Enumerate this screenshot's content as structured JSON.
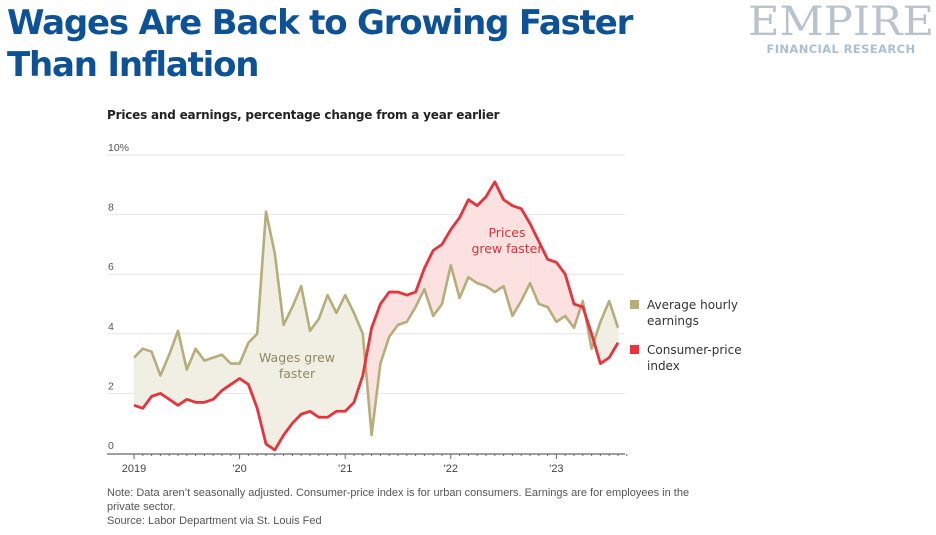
{
  "header": {
    "title_line1": "Wages Are Back to Growing Faster",
    "title_line2": "Than Inflation",
    "logo_main": "EMPIRE",
    "logo_sub": "FINANCIAL RESEARCH"
  },
  "colors": {
    "title": "#0d5197",
    "wages": "#b5ad7a",
    "cpi": "#e8323c",
    "wages_fill": "#f1efe3",
    "cpi_fill": "#fbe1df",
    "grid": "#e6e6e6",
    "axis": "#666666"
  },
  "chart_data": {
    "type": "line",
    "title": "Prices and earnings, percentage change from a year earlier",
    "xlabel": "",
    "ylabel": "",
    "ylim": [
      0,
      10
    ],
    "yticks": [
      0,
      2,
      4,
      6,
      8,
      10
    ],
    "ytick_labels": [
      "0",
      "2",
      "4",
      "6",
      "8",
      "10%"
    ],
    "xtick_labels": [
      "2019",
      "'20",
      "'21",
      "'22",
      "'23"
    ],
    "x_start": "2019-01",
    "x_end": "2023-08",
    "frequency": "monthly",
    "grid": true,
    "legend_position": "right",
    "series": [
      {
        "name": "Average hourly earnings",
        "color": "#b5ad7a",
        "values": [
          3.2,
          3.5,
          3.4,
          2.6,
          3.3,
          4.1,
          2.8,
          3.5,
          3.1,
          3.2,
          3.3,
          3.0,
          3.0,
          3.7,
          4.0,
          8.1,
          6.7,
          4.3,
          4.9,
          5.6,
          4.1,
          4.5,
          5.3,
          4.7,
          5.3,
          4.7,
          4.0,
          0.6,
          3.0,
          3.9,
          4.3,
          4.4,
          4.9,
          5.5,
          4.6,
          5.0,
          6.3,
          5.2,
          5.9,
          5.7,
          5.6,
          5.4,
          5.6,
          4.6,
          5.1,
          5.7,
          5.0,
          4.9,
          4.4,
          4.6,
          4.2,
          5.1,
          3.5,
          4.4,
          5.1,
          4.2
        ]
      },
      {
        "name": "Consumer-price index",
        "color": "#e8323c",
        "values": [
          1.6,
          1.5,
          1.9,
          2.0,
          1.8,
          1.6,
          1.8,
          1.7,
          1.7,
          1.8,
          2.1,
          2.3,
          2.5,
          2.3,
          1.5,
          0.3,
          0.1,
          0.6,
          1.0,
          1.3,
          1.4,
          1.2,
          1.2,
          1.4,
          1.4,
          1.7,
          2.6,
          4.2,
          5.0,
          5.4,
          5.4,
          5.3,
          5.4,
          6.2,
          6.8,
          7.0,
          7.5,
          7.9,
          8.5,
          8.3,
          8.6,
          9.1,
          8.5,
          8.3,
          8.2,
          7.7,
          7.1,
          6.5,
          6.4,
          6.0,
          5.0,
          4.9,
          4.0,
          3.0,
          3.2,
          3.7
        ]
      }
    ],
    "legend": [
      {
        "line1": "Average hourly",
        "line2": "earnings"
      },
      {
        "line1": "Consumer-price",
        "line2": "index"
      }
    ],
    "annotations": [
      {
        "line1": "Wages grew",
        "line2": "faster",
        "series_color": "wages"
      },
      {
        "line1": "Prices",
        "line2": "grew faster",
        "series_color": "cpi"
      }
    ]
  },
  "footer": {
    "note_line1": "Note: Data aren’t seasonally adjusted. Consumer-price index is for urban consumers. Earnings are for employees in the",
    "note_line2": "private sector.",
    "source": "Source: Labor Department via St. Louis Fed"
  }
}
